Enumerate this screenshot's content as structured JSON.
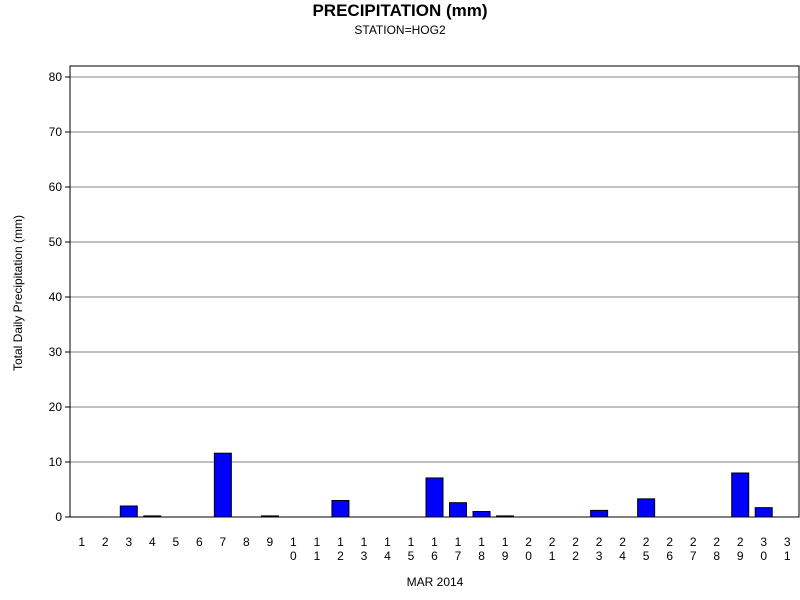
{
  "chart_data": {
    "type": "bar",
    "title": "PRECIPITATION (mm)",
    "subtitle": "STATION=HOG2",
    "xlabel": "MAR 2014",
    "ylabel": "Total Daily Precipitation (mm)",
    "ylim": [
      0,
      80
    ],
    "yticks": [
      0,
      10,
      20,
      30,
      40,
      50,
      60,
      70,
      80
    ],
    "grid": true,
    "bar_color": "#0000ff",
    "categories": [
      "1",
      "2",
      "3",
      "4",
      "5",
      "6",
      "7",
      "8",
      "9",
      "10",
      "11",
      "12",
      "13",
      "14",
      "15",
      "16",
      "17",
      "18",
      "19",
      "20",
      "21",
      "22",
      "23",
      "24",
      "25",
      "26",
      "27",
      "28",
      "29",
      "30",
      "31"
    ],
    "values": [
      0,
      0,
      2.0,
      0.2,
      0,
      0,
      11.6,
      0,
      0.2,
      0,
      0,
      3.0,
      0,
      0,
      0,
      7.1,
      2.6,
      1.0,
      0.2,
      0,
      0,
      0,
      1.2,
      0,
      3.3,
      0,
      0,
      0,
      8.0,
      1.7,
      0
    ]
  }
}
